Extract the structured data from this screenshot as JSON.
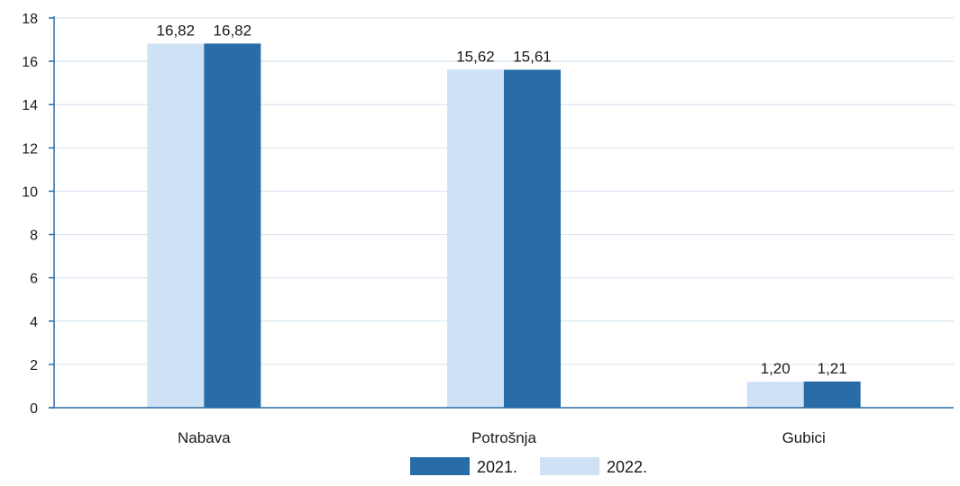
{
  "chart_data": {
    "type": "bar",
    "categories": [
      "Nabava",
      "Potrošnja",
      "Gubici"
    ],
    "series": [
      {
        "name": "2022.",
        "values": [
          16.82,
          15.62,
          1.2
        ],
        "labels": [
          "16,82",
          "15,62",
          "1,20"
        ],
        "color": "#cfe2f5"
      },
      {
        "name": "2021.",
        "values": [
          16.82,
          15.61,
          1.21
        ],
        "labels": [
          "16,82",
          "15,61",
          "1,21"
        ],
        "color": "#286da8"
      }
    ],
    "ylim": [
      0,
      18
    ],
    "yticks": [
      0,
      2,
      4,
      6,
      8,
      10,
      12,
      14,
      16,
      18
    ],
    "ytick_labels": [
      "0",
      "2",
      "4",
      "6",
      "8",
      "10",
      "12",
      "14",
      "16",
      "18"
    ],
    "grid": true,
    "legend": {
      "placement": "bottom",
      "order": [
        "2021.",
        "2022."
      ]
    },
    "colors": {
      "axis": "#286da8",
      "grid": "#d9e6f2",
      "text": "#1a1a1a"
    }
  }
}
